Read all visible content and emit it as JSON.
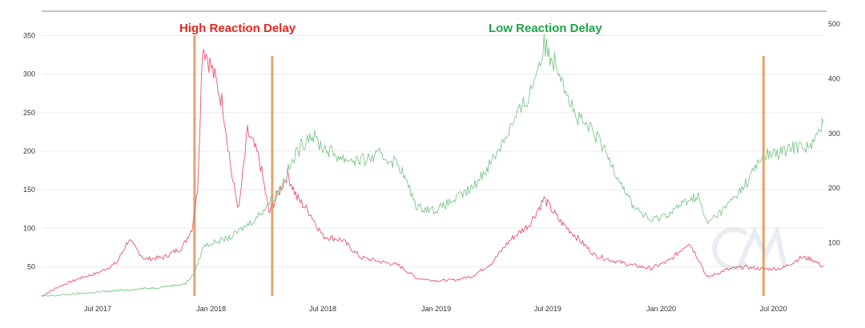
{
  "chart_data": {
    "type": "line",
    "title": "",
    "xlabel": "",
    "ylabel": "",
    "x_ticks": [
      "Jul 2017",
      "Jan 2018",
      "Jul 2018",
      "Jan 2019",
      "Jul 2019",
      "Jan 2020",
      "Jul 2020"
    ],
    "y_left_ticks": [
      "50",
      "100",
      "150",
      "200",
      "250",
      "300",
      "350"
    ],
    "y_right_ticks": [
      "100",
      "200",
      "300",
      "400",
      "500"
    ],
    "ylim_left": [
      10,
      365
    ],
    "ylim_right": [
      0,
      500
    ],
    "grid": true,
    "legend": "none",
    "annotations": [
      {
        "text": "High Reaction Delay",
        "color": "#e8261f"
      },
      {
        "text": "Low Reaction Delay",
        "color": "#1fa44a"
      }
    ],
    "vertical_markers": [
      "2017-12-05",
      "2018-04-10",
      "2020-06-15"
    ],
    "marker_color": "#e8a36a",
    "series": [
      {
        "axis": "left",
        "color": "#e8566e",
        "points": [
          [
            "2017-04-01",
            12
          ],
          [
            "2017-05-01",
            25
          ],
          [
            "2017-06-01",
            35
          ],
          [
            "2017-07-01",
            42
          ],
          [
            "2017-08-01",
            55
          ],
          [
            "2017-08-20",
            85
          ],
          [
            "2017-09-15",
            60
          ],
          [
            "2017-10-15",
            62
          ],
          [
            "2017-11-15",
            75
          ],
          [
            "2017-12-01",
            100
          ],
          [
            "2017-12-10",
            150
          ],
          [
            "2017-12-18",
            340
          ],
          [
            "2018-01-05",
            300
          ],
          [
            "2018-01-20",
            260
          ],
          [
            "2018-02-05",
            160
          ],
          [
            "2018-02-15",
            125
          ],
          [
            "2018-03-01",
            225
          ],
          [
            "2018-03-20",
            190
          ],
          [
            "2018-04-05",
            120
          ],
          [
            "2018-04-20",
            145
          ],
          [
            "2018-05-05",
            170
          ],
          [
            "2018-05-20",
            140
          ],
          [
            "2018-06-10",
            120
          ],
          [
            "2018-07-01",
            90
          ],
          [
            "2018-08-01",
            85
          ],
          [
            "2018-09-01",
            62
          ],
          [
            "2018-10-01",
            57
          ],
          [
            "2018-11-01",
            52
          ],
          [
            "2018-12-01",
            35
          ],
          [
            "2019-01-01",
            32
          ],
          [
            "2019-02-01",
            33
          ],
          [
            "2019-03-01",
            38
          ],
          [
            "2019-04-01",
            55
          ],
          [
            "2019-05-01",
            85
          ],
          [
            "2019-06-01",
            105
          ],
          [
            "2019-06-25",
            138
          ],
          [
            "2019-07-20",
            110
          ],
          [
            "2019-08-15",
            90
          ],
          [
            "2019-09-15",
            65
          ],
          [
            "2019-10-15",
            58
          ],
          [
            "2019-11-15",
            52
          ],
          [
            "2019-12-15",
            48
          ],
          [
            "2020-01-15",
            58
          ],
          [
            "2020-02-15",
            82
          ],
          [
            "2020-03-05",
            55
          ],
          [
            "2020-03-15",
            36
          ],
          [
            "2020-04-15",
            46
          ],
          [
            "2020-05-15",
            50
          ],
          [
            "2020-06-15",
            47
          ],
          [
            "2020-07-15",
            48
          ],
          [
            "2020-08-15",
            62
          ],
          [
            "2020-09-01",
            60
          ],
          [
            "2020-09-20",
            50
          ]
        ]
      },
      {
        "axis": "right",
        "color": "#7ec88a",
        "points": [
          [
            "2017-04-01",
            2
          ],
          [
            "2017-07-01",
            10
          ],
          [
            "2017-10-01",
            18
          ],
          [
            "2017-11-20",
            25
          ],
          [
            "2017-12-05",
            45
          ],
          [
            "2017-12-20",
            95
          ],
          [
            "2018-02-01",
            110
          ],
          [
            "2018-03-15",
            145
          ],
          [
            "2018-04-20",
            195
          ],
          [
            "2018-05-20",
            265
          ],
          [
            "2018-06-10",
            300
          ],
          [
            "2018-07-01",
            275
          ],
          [
            "2018-08-01",
            255
          ],
          [
            "2018-09-01",
            250
          ],
          [
            "2018-10-01",
            260
          ],
          [
            "2018-11-01",
            245
          ],
          [
            "2018-12-01",
            165
          ],
          [
            "2019-01-01",
            160
          ],
          [
            "2019-02-01",
            180
          ],
          [
            "2019-03-01",
            200
          ],
          [
            "2019-04-01",
            250
          ],
          [
            "2019-05-01",
            310
          ],
          [
            "2019-06-01",
            370
          ],
          [
            "2019-06-25",
            460
          ],
          [
            "2019-07-20",
            420
          ],
          [
            "2019-08-15",
            330
          ],
          [
            "2019-09-15",
            300
          ],
          [
            "2019-10-15",
            240
          ],
          [
            "2019-11-15",
            170
          ],
          [
            "2019-12-15",
            140
          ],
          [
            "2020-01-15",
            155
          ],
          [
            "2020-02-15",
            180
          ],
          [
            "2020-03-01",
            185
          ],
          [
            "2020-03-15",
            135
          ],
          [
            "2020-04-15",
            165
          ],
          [
            "2020-05-15",
            205
          ],
          [
            "2020-06-15",
            260
          ],
          [
            "2020-07-15",
            265
          ],
          [
            "2020-08-15",
            280
          ],
          [
            "2020-09-01",
            275
          ],
          [
            "2020-09-20",
            320
          ]
        ]
      }
    ]
  }
}
